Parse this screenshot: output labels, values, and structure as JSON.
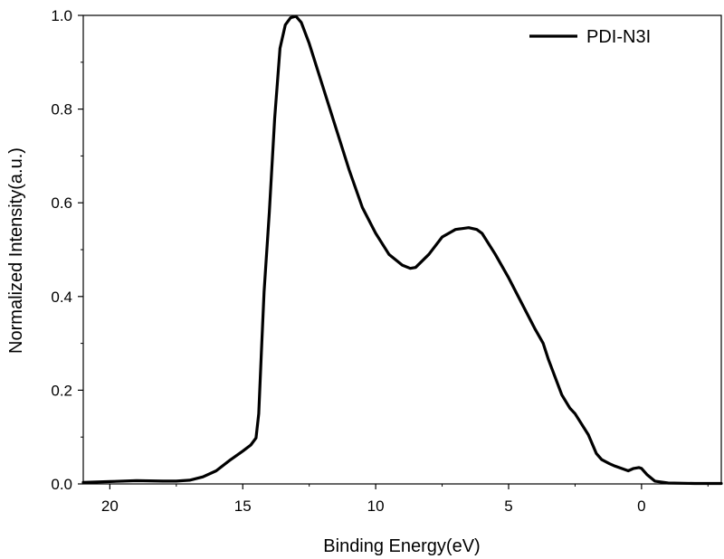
{
  "chart_data": {
    "type": "line",
    "title": "",
    "xlabel": "Binding Energy(eV)",
    "ylabel": "Normalized Intensity(a.u.)",
    "xlim": [
      21,
      -3
    ],
    "ylim": [
      0.0,
      1.0
    ],
    "x_reversed": true,
    "x_ticks": [
      20,
      15,
      10,
      5,
      0
    ],
    "x_tick_labels": [
      "20",
      "15",
      "10",
      "5",
      "0"
    ],
    "y_ticks": [
      0.0,
      0.2,
      0.4,
      0.6,
      0.8,
      1.0
    ],
    "y_tick_labels": [
      "0.0",
      "0.2",
      "0.4",
      "0.6",
      "0.8",
      "1.0"
    ],
    "grid": false,
    "legend": {
      "placement": "top-right",
      "entries": [
        "PDI-N3I"
      ]
    },
    "series": [
      {
        "name": "PDI-N3I",
        "color": "#000000",
        "x": [
          21.0,
          20.0,
          19.0,
          18.0,
          17.5,
          17.0,
          16.5,
          16.0,
          15.5,
          15.0,
          14.7,
          14.5,
          14.4,
          14.3,
          14.2,
          14.0,
          13.8,
          13.6,
          13.4,
          13.2,
          13.0,
          12.8,
          12.5,
          12.0,
          11.5,
          11.0,
          10.5,
          10.0,
          9.5,
          9.0,
          8.7,
          8.5,
          8.0,
          7.5,
          7.0,
          6.5,
          6.2,
          6.0,
          5.5,
          5.0,
          4.5,
          4.0,
          3.7,
          3.5,
          3.0,
          2.7,
          2.5,
          2.0,
          1.7,
          1.5,
          1.2,
          1.0,
          0.7,
          0.5,
          0.3,
          0.1,
          0.0,
          -0.2,
          -0.5,
          -1.0,
          -2.0,
          -3.0
        ],
        "values": [
          0.003,
          0.005,
          0.007,
          0.006,
          0.006,
          0.008,
          0.015,
          0.028,
          0.05,
          0.07,
          0.083,
          0.098,
          0.15,
          0.28,
          0.41,
          0.58,
          0.78,
          0.93,
          0.98,
          0.995,
          0.998,
          0.985,
          0.94,
          0.85,
          0.76,
          0.67,
          0.59,
          0.535,
          0.49,
          0.467,
          0.46,
          0.462,
          0.49,
          0.527,
          0.543,
          0.547,
          0.543,
          0.535,
          0.49,
          0.44,
          0.385,
          0.33,
          0.3,
          0.265,
          0.19,
          0.162,
          0.15,
          0.105,
          0.065,
          0.052,
          0.043,
          0.038,
          0.032,
          0.028,
          0.033,
          0.035,
          0.033,
          0.02,
          0.006,
          0.002,
          0.001,
          0.001
        ]
      }
    ]
  }
}
